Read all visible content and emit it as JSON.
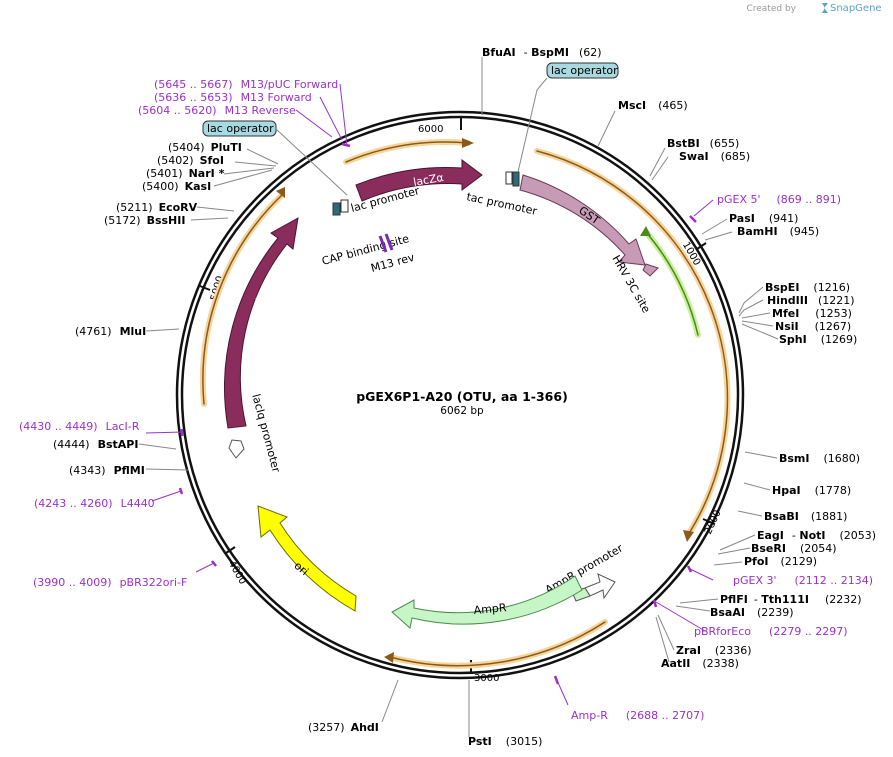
{
  "header": {
    "created_by": "Created by",
    "brand": "SnapGene"
  },
  "plasmid": {
    "name": "pGEX6P1-A20 (OTU, aa 1-366)",
    "size": "6062 bp"
  },
  "colors": {
    "lacZ": "#8b2d5c",
    "lacI": "#8b2d5c",
    "GST": "#c79bb5",
    "ori": "#ffff00",
    "AmpR": "#c6f5c6",
    "primer": "#9b30c9",
    "orf": "#f0a53c",
    "orf_green": "#5a9a2a"
  },
  "ticks": [
    "1000",
    "2000",
    "3000",
    "4000",
    "5000",
    "6000"
  ],
  "enzymes": {
    "bfuai": "BfuAI",
    "bspmi": "BspMI",
    "bfuai_pos": "(62)",
    "msci": "MscI",
    "msci_pos": "(465)",
    "bstbi": "BstBI",
    "bstbi_pos": "(655)",
    "swai": "SwaI",
    "swai_pos": "(685)",
    "pasi": "PasI",
    "pasi_pos": "(941)",
    "bamhi": "BamHI",
    "bamhi_pos": "(945)",
    "bspei": "BspEI",
    "bspei_pos": "(1216)",
    "hindiii": "HindIII",
    "hindiii_pos": "(1221)",
    "mfei": "MfeI",
    "mfei_pos": "(1253)",
    "nsii": "NsiI",
    "nsii_pos": "(1267)",
    "sphi": "SphI",
    "sphi_pos": "(1269)",
    "bsmi": "BsmI",
    "bsmi_pos": "(1680)",
    "hpai": "HpaI",
    "hpai_pos": "(1778)",
    "bsabi": "BsaBI",
    "bsabi_pos": "(1881)",
    "eagi": "EagI",
    "noti": "NotI",
    "eagi_pos": "(2053)",
    "bseri": "BseRI",
    "bseri_pos": "(2054)",
    "pfoi": "PfoI",
    "pfoi_pos": "(2129)",
    "pflfi": "PflFI",
    "tth111i": "Tth111I",
    "pflfi_pos": "(2232)",
    "bsaai": "BsaAI",
    "bsaai_pos": "(2239)",
    "zrai": "ZraI",
    "zrai_pos": "(2336)",
    "aatii": "AatII",
    "aatii_pos": "(2338)",
    "psti": "PstI",
    "psti_pos": "(3015)",
    "ahdi": "AhdI",
    "ahdi_pos": "(3257)",
    "pflmi": "PflMI",
    "pflmi_pos": "(4343)",
    "bstapi": "BstAPI",
    "bstapi_pos": "(4444)",
    "mlui": "MluI",
    "mlui_pos": "(4761)",
    "bsshii": "BssHII",
    "bsshii_pos": "(5172)",
    "ecorv": "EcoRV",
    "ecorv_pos": "(5211)",
    "kasi": "KasI",
    "kasi_pos": "(5400)",
    "nari": "NarI",
    "nari_star": "*",
    "nari_pos": "(5401)",
    "sfoi": "SfoI",
    "sfoi_pos": "(5402)",
    "pluti": "PluTI",
    "pluti_pos": "(5404)"
  },
  "primers": {
    "pgex5": "pGEX 5'",
    "pgex5_pos": "(869 .. 891)",
    "pgex3": "pGEX 3'",
    "pgex3_pos": "(2112 .. 2134)",
    "pbrforeco": "pBRforEco",
    "pbrforeco_pos": "(2279 .. 2297)",
    "ampr": "Amp-R",
    "ampr_pos": "(2688 .. 2707)",
    "pbr322ori": "pBR322ori-F",
    "pbr322ori_pos": "(3990 .. 4009)",
    "l4440": "L4440",
    "l4440_pos": "(4243 .. 4260)",
    "laci_r": "LacI-R",
    "laci_r_pos": "(4430 .. 4449)",
    "m13rev": "M13 Reverse",
    "m13rev_pos": "(5604 .. 5620)",
    "m13fwd": "M13 Forward",
    "m13fwd_pos": "(5636 .. 5653)",
    "m13puc": "M13/pUC Forward",
    "m13puc_pos": "(5645 .. 5667)",
    "m13rev_short": "M13 rev"
  },
  "features": {
    "lac_operator": "lac operator",
    "lacZa": "lacZα",
    "laci": "lacI",
    "lacIq_promoter": "lacIq promoter",
    "lac_promoter": "lac promoter",
    "cap_site": "CAP binding site",
    "tac_promoter": "tac promoter",
    "gst": "GST",
    "hrv": "HRV 3C site",
    "ampr": "AmpR",
    "ampr_promoter": "AmpR promoter",
    "ori": "ori"
  }
}
